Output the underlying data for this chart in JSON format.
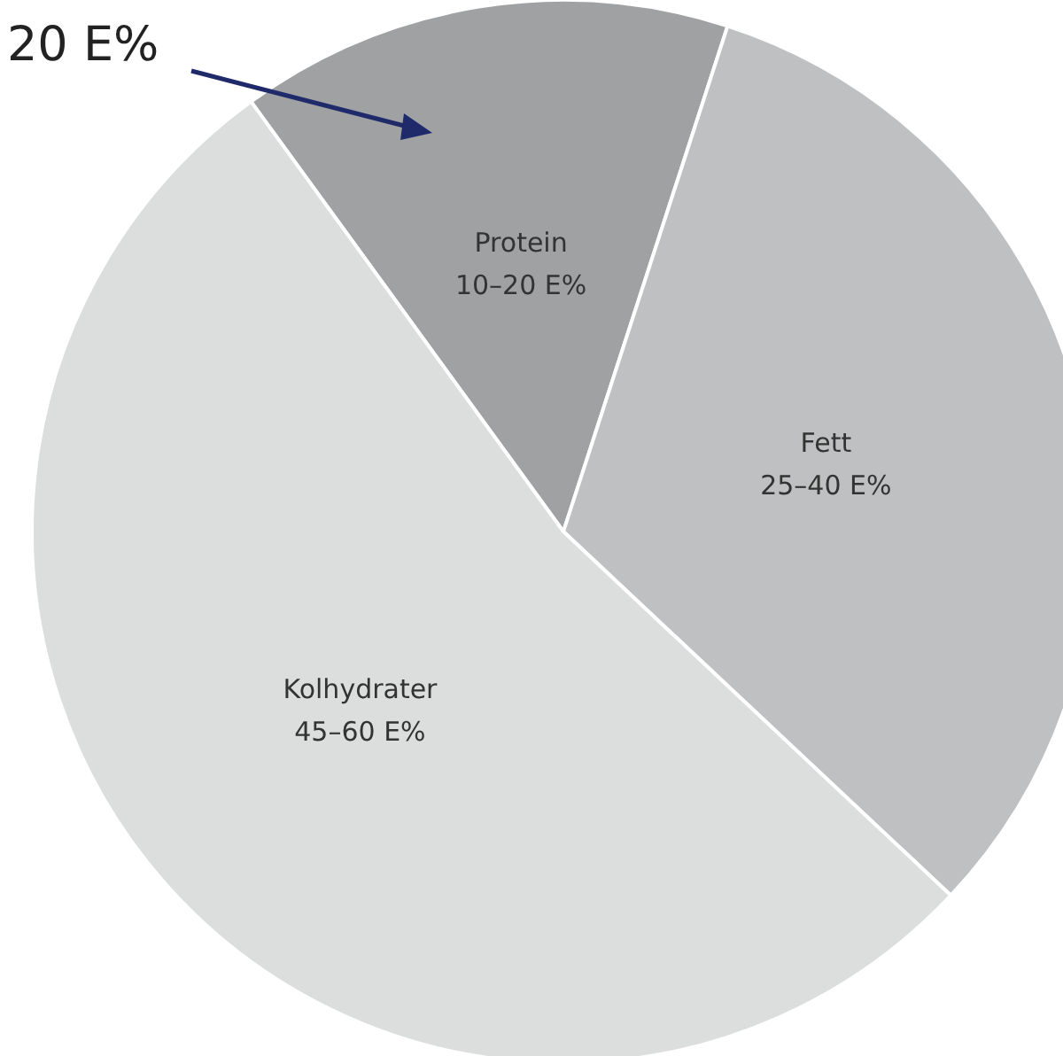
{
  "chart_data": {
    "type": "pie",
    "categories": [
      "Protein",
      "Fett",
      "Kolhydrater"
    ],
    "values": [
      15,
      32,
      53
    ],
    "colors": [
      "#9fa1a2",
      "#bfc0c1",
      "#dcdddd"
    ],
    "annotations": [
      "20 E%",
      {
        "text": "10–20 E%",
        "x": "Protein"
      },
      {
        "text": "25–40 E%",
        "x": "Fett"
      },
      {
        "text": "45–60 E%",
        "x": "Kolhydrater"
      }
    ]
  }
}
